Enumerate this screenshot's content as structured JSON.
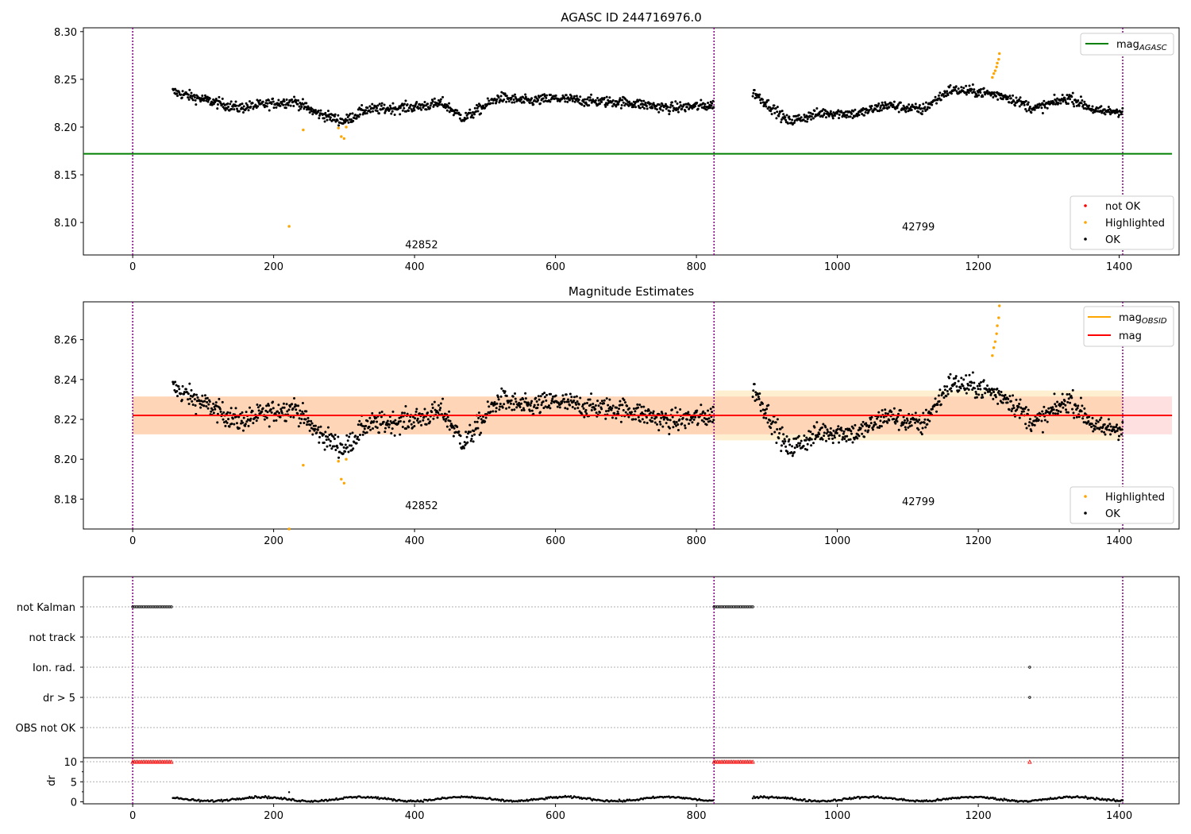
{
  "chart_data": [
    {
      "type": "scatter",
      "title": "AGASC ID 244716976.0",
      "xlim": [
        -70,
        1485
      ],
      "ylim": [
        8.066,
        8.304
      ],
      "xticks": [
        0,
        200,
        400,
        600,
        800,
        1000,
        1200,
        1400,
        1600
      ],
      "yticks": [
        8.1,
        8.15,
        8.2,
        8.25,
        8.3
      ],
      "ytick_labels": [
        "8.10",
        "8.15",
        "8.20",
        "8.25",
        "8.30"
      ],
      "obs_boundaries": [
        0,
        825,
        1405
      ],
      "obsids": [
        {
          "label": "42852",
          "x": 410,
          "y": 8.073
        },
        {
          "label": "42799",
          "x": 1115,
          "y": 8.092
        }
      ],
      "hline": {
        "name": "mag_AGASC",
        "y": 8.172,
        "color": "#008000"
      },
      "series": [
        {
          "name": "OK",
          "color": "#000000",
          "segments": [
            {
              "x0": 57,
              "x1": 825,
              "base": 8.222
            },
            {
              "x0": 880,
              "x1": 1405,
              "base": 8.222
            }
          ]
        },
        {
          "name": "Highlighted",
          "color": "#ffa500",
          "points": [
            [
              222,
              8.096
            ],
            [
              242,
              8.197
            ],
            [
              292,
              8.199
            ],
            [
              296,
              8.19
            ],
            [
              300,
              8.188
            ],
            [
              303,
              8.2
            ],
            [
              1220,
              8.252
            ],
            [
              1222,
              8.256
            ],
            [
              1224,
              8.259
            ],
            [
              1226,
              8.263
            ],
            [
              1227,
              8.267
            ],
            [
              1229,
              8.271
            ],
            [
              1230,
              8.277
            ]
          ]
        },
        {
          "name": "not OK",
          "color": "#ff0000",
          "points": []
        }
      ],
      "legend_lines": [
        {
          "name": "mag",
          "sub": "AGASC",
          "color": "#008000"
        }
      ],
      "legend_markers": [
        {
          "name": "not OK",
          "color": "#ff0000"
        },
        {
          "name": "Highlighted",
          "color": "#ffa500"
        },
        {
          "name": "OK",
          "color": "#000000"
        }
      ]
    },
    {
      "type": "scatter",
      "title": "Magnitude Estimates",
      "xlim": [
        -70,
        1485
      ],
      "ylim": [
        8.165,
        8.279
      ],
      "xticks": [
        0,
        200,
        400,
        600,
        800,
        1000,
        1200,
        1400,
        1600
      ],
      "yticks": [
        8.18,
        8.2,
        8.22,
        8.24,
        8.26
      ],
      "ytick_labels": [
        "8.18",
        "8.20",
        "8.22",
        "8.24",
        "8.26"
      ],
      "obs_boundaries": [
        0,
        825,
        1405
      ],
      "obsids": [
        {
          "label": "42852",
          "x": 410,
          "y": 8.175
        },
        {
          "label": "42799",
          "x": 1115,
          "y": 8.177
        }
      ],
      "mag": {
        "y": 8.222,
        "lo": 8.2125,
        "hi": 8.2315,
        "x0": 0,
        "x1": 1475,
        "color": "#ff0000"
      },
      "obs_mag_bands": [
        {
          "x0": 0,
          "x1": 825,
          "lo": 8.2125,
          "hi": 8.2315
        },
        {
          "x0": 825,
          "x1": 1405,
          "lo": 8.2095,
          "hi": 8.2345
        }
      ],
      "series": [
        {
          "name": "OK",
          "color": "#000000"
        },
        {
          "name": "Highlighted",
          "color": "#ffa500"
        }
      ],
      "legend_lines": [
        {
          "name": "mag",
          "sub": "OBSID",
          "color": "#ffa500"
        },
        {
          "name": "mag",
          "sub": "",
          "color": "#ff0000"
        }
      ],
      "legend_markers": [
        {
          "name": "Highlighted",
          "color": "#ffa500"
        },
        {
          "name": "OK",
          "color": "#000000"
        }
      ]
    },
    {
      "type": "scatter",
      "xlim": [
        -70,
        1485
      ],
      "flags": [
        "not Kalman",
        "not track",
        "Ion. rad.",
        "dr > 5",
        "OBS not OK"
      ],
      "flag_points": [
        {
          "flag": "not Kalman",
          "ranges": [
            [
              0,
              57
            ],
            [
              825,
              880
            ]
          ]
        },
        {
          "flag": "Ion. rad.",
          "ranges": [
            [
              1273,
              1273
            ]
          ]
        },
        {
          "flag": "dr > 5",
          "ranges": [
            [
              1273,
              1273
            ]
          ]
        }
      ],
      "dr": {
        "ylabel": "dr",
        "yticks": [
          0,
          5,
          10
        ],
        "ytick_labels": [
          "0",
          "5",
          "10"
        ],
        "ylim": [
          -0.5,
          11
        ],
        "clipped_value": 10,
        "clipped_ranges": [
          [
            0,
            57
          ],
          [
            825,
            880
          ],
          [
            1273,
            1273
          ]
        ]
      },
      "xticks": [
        0,
        200,
        400,
        600,
        800,
        1000,
        1200,
        1400,
        1600
      ]
    }
  ]
}
